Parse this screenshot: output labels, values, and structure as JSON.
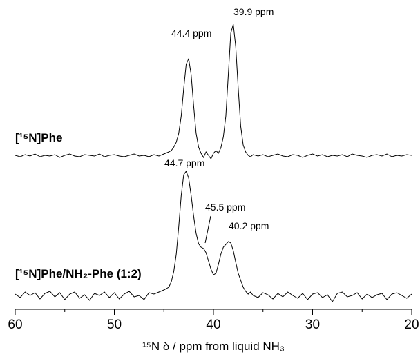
{
  "chart_data": {
    "type": "line",
    "xlabel": "¹⁵N δ / ppm from liquid NH₃",
    "xlim": [
      60,
      20
    ],
    "xticks": [
      60,
      50,
      40,
      30,
      20
    ],
    "xminor_ticks": [
      55,
      45,
      35,
      25
    ],
    "ylim": [
      -0.2,
      4.08
    ],
    "annotations": [
      "39.9 ppm",
      "44.4 ppm",
      "44.7 ppm",
      "45.5 ppm",
      "40.2 ppm"
    ],
    "x": [
      60,
      59.5,
      59,
      58.5,
      58,
      57.5,
      57,
      56.5,
      56,
      55.5,
      55,
      54.5,
      54,
      53.5,
      53,
      52.5,
      52,
      51.5,
      51,
      50.5,
      50,
      49.5,
      49,
      48.5,
      48,
      47.5,
      47,
      46.5,
      46,
      45.5,
      45,
      44.5,
      44.25,
      44,
      43.75,
      43.5,
      43.25,
      43,
      42.75,
      42.5,
      42.25,
      42,
      41.75,
      41.5,
      41.25,
      41,
      40.75,
      40.5,
      40.25,
      40,
      39.75,
      39.5,
      39.25,
      39,
      38.75,
      38.5,
      38.25,
      38,
      37.75,
      37.5,
      37.25,
      37,
      36.75,
      36.5,
      36.25,
      36,
      35.5,
      35,
      34.5,
      34,
      33.5,
      33,
      32.5,
      32,
      31.5,
      31,
      30.5,
      30,
      29.5,
      29,
      28.5,
      28,
      27.5,
      27,
      26.5,
      26,
      25.5,
      25,
      24.5,
      24,
      23.5,
      23,
      22.5,
      22,
      21.5,
      21,
      20.5,
      20
    ],
    "series": [
      {
        "name": "[¹⁵N]Phe",
        "color": "#000000",
        "values": [
          2.03,
          2.01,
          2.04,
          2.02,
          2.05,
          2.01,
          2.03,
          2.02,
          2.04,
          2.0,
          2.03,
          2.05,
          2.02,
          2.01,
          2.04,
          2.03,
          2.02,
          2.05,
          2.01,
          2.03,
          2.04,
          2.02,
          2.01,
          2.03,
          2.05,
          2.02,
          2.03,
          2.01,
          2.04,
          2.02,
          2.05,
          2.08,
          2.1,
          2.15,
          2.22,
          2.35,
          2.6,
          3.0,
          3.35,
          3.43,
          3.2,
          2.75,
          2.35,
          2.15,
          2.06,
          2.0,
          2.08,
          2.03,
          1.98,
          2.06,
          2.1,
          2.06,
          2.14,
          2.3,
          2.6,
          3.2,
          3.8,
          3.93,
          3.6,
          3.0,
          2.45,
          2.18,
          2.08,
          2.03,
          2.01,
          2.04,
          2.02,
          2.04,
          2.01,
          2.03,
          2.05,
          2.02,
          2.01,
          2.04,
          2.03,
          2.0,
          2.03,
          2.05,
          2.02,
          2.04,
          2.01,
          2.03,
          2.02,
          2.04,
          2.01,
          2.05,
          2.03,
          2.02,
          2.0,
          2.03,
          2.04,
          2.02,
          2.05,
          2.01,
          2.03,
          2.02,
          2.04,
          2.03
        ]
      },
      {
        "name": "[¹⁵N]Phe/NH₂-Phe (1:2)",
        "color": "#000000",
        "values": [
          0.02,
          -0.03,
          0.05,
          0.0,
          0.04,
          -0.05,
          0.03,
          0.06,
          -0.02,
          0.04,
          -0.06,
          0.02,
          0.05,
          -0.04,
          0.01,
          -0.07,
          0.03,
          0.0,
          0.05,
          -0.03,
          0.04,
          -0.05,
          0.02,
          0.06,
          -0.02,
          0.0,
          -0.06,
          0.04,
          0.02,
          0.05,
          0.08,
          0.12,
          0.2,
          0.35,
          0.6,
          1.0,
          1.45,
          1.75,
          1.8,
          1.7,
          1.45,
          1.15,
          0.9,
          0.75,
          0.7,
          0.68,
          0.62,
          0.5,
          0.38,
          0.3,
          0.32,
          0.45,
          0.6,
          0.7,
          0.74,
          0.78,
          0.76,
          0.65,
          0.48,
          0.32,
          0.22,
          0.12,
          0.06,
          0.02,
          0.05,
          0.0,
          -0.03,
          0.04,
          0.01,
          -0.05,
          0.03,
          -0.02,
          0.05,
          0.0,
          -0.04,
          0.03,
          -0.06,
          0.02,
          0.04,
          -0.03,
          0.01,
          -0.09,
          0.03,
          0.05,
          -0.02,
          0.0,
          0.04,
          -0.05,
          0.02,
          -0.03,
          0.01,
          0.03,
          -0.06,
          0.02,
          0.04,
          0.0,
          -0.04,
          0.02
        ]
      }
    ]
  }
}
